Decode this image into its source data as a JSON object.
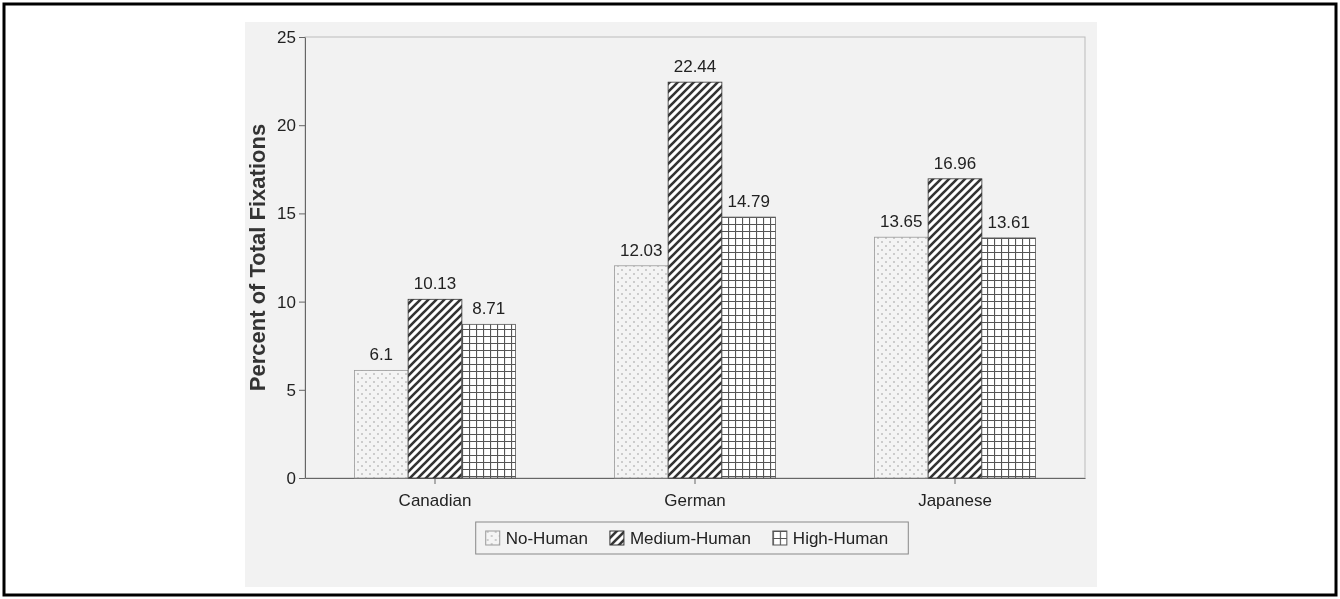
{
  "chart_data": {
    "type": "bar",
    "ylabel": "Percent of Total Fixations",
    "categories": [
      "Canadian",
      "German",
      "Japanese"
    ],
    "series": [
      {
        "name": "No-Human",
        "color": "#999999",
        "values": [
          6.1,
          12.03,
          13.65
        ]
      },
      {
        "name": "Medium-Human",
        "color": "#333333",
        "values": [
          10.13,
          22.44,
          16.96
        ]
      },
      {
        "name": "High-Human",
        "color": "#555555",
        "values": [
          8.71,
          14.79,
          13.61
        ]
      }
    ],
    "ylim": [
      0,
      25
    ],
    "yticks": [
      0,
      5,
      10,
      15,
      20,
      25
    ],
    "data_labels": true,
    "legend": "bottom"
  }
}
